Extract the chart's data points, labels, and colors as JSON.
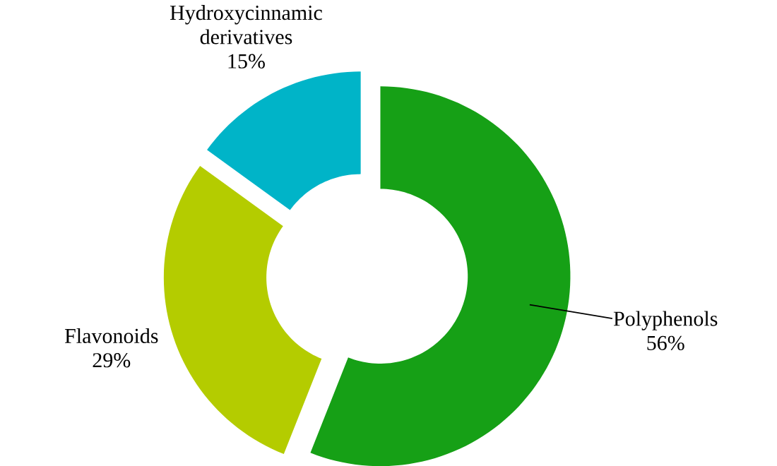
{
  "chart_data": {
    "type": "donut",
    "categories": [
      "Polyphenols",
      "Flavonoids",
      "Hydroxycinnamic derivatives"
    ],
    "values": [
      56,
      29,
      15
    ],
    "colors": [
      "#16a016",
      "#b4cc00",
      "#00b4c8"
    ],
    "value_labels": [
      "56%",
      "29%",
      "15%"
    ]
  }
}
